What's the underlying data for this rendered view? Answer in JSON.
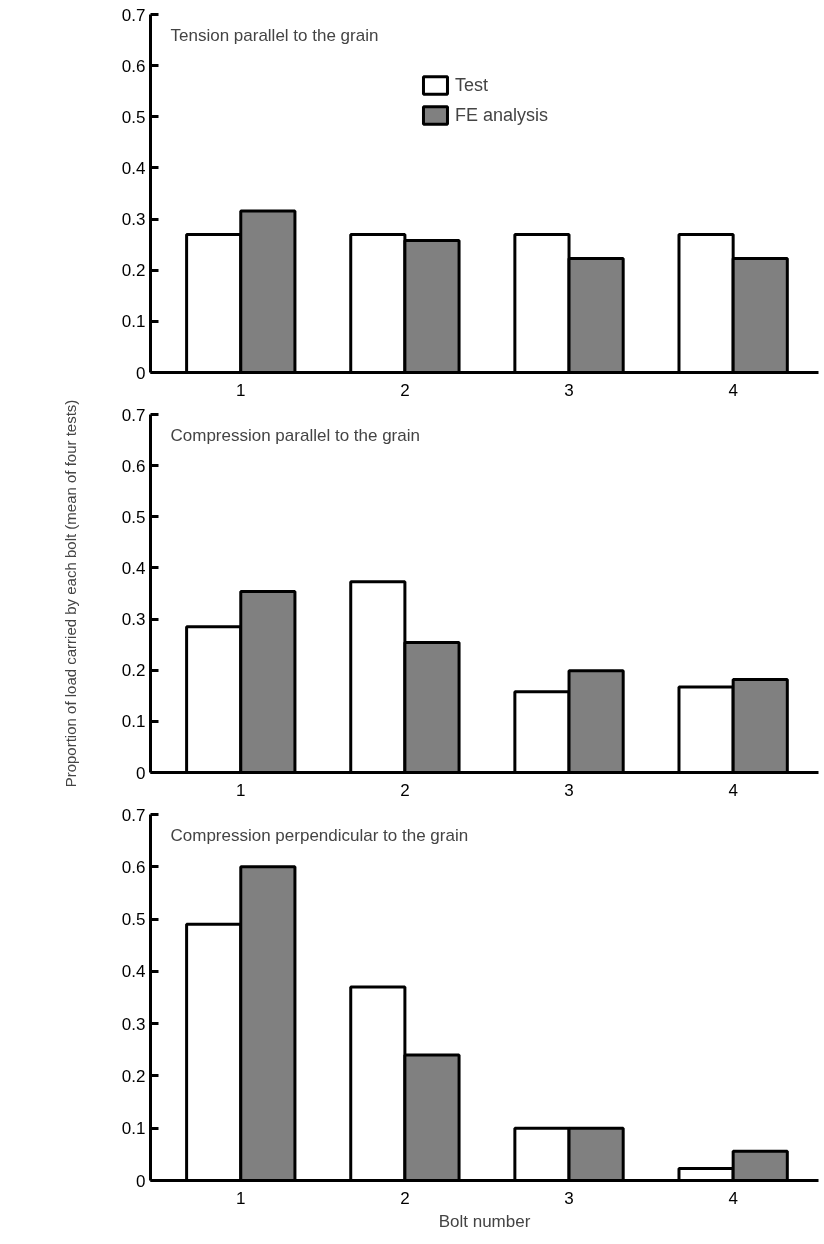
{
  "chart_data": [
    {
      "type": "bar",
      "title": "Tension parallel to the grain",
      "categories": [
        "1",
        "2",
        "3",
        "4"
      ],
      "series": [
        {
          "name": "Test",
          "color": "#ffffff",
          "values": [
            0.27,
            0.27,
            0.27,
            0.27
          ]
        },
        {
          "name": "FE analysis",
          "color": "#808080",
          "values": [
            0.316,
            0.258,
            0.223,
            0.223
          ]
        }
      ],
      "ylim": [
        0,
        0.7
      ],
      "yticks": [
        0,
        0.1,
        0.2,
        0.3,
        0.4,
        0.5,
        0.6,
        0.7
      ],
      "grid": false,
      "legend": "top"
    },
    {
      "type": "bar",
      "title": "Compression parallel to the grain",
      "ylabel": "Proportion of load carried by each bolt (mean of four tests)",
      "categories": [
        "1",
        "2",
        "3",
        "4"
      ],
      "series": [
        {
          "color": "#ffffff",
          "values": [
            0.285,
            0.373,
            0.158,
            0.167
          ]
        },
        {
          "color": "#808080",
          "values": [
            0.354,
            0.254,
            0.199,
            0.182
          ]
        }
      ],
      "ylim": [
        0,
        0.7
      ],
      "yticks": [
        0,
        0.1,
        0.2,
        0.3,
        0.4,
        0.5,
        0.6,
        0.7
      ],
      "grid": false
    },
    {
      "type": "bar",
      "title": "Compression perpendicular to the grain",
      "xlabel": "Bolt number",
      "categories": [
        "1",
        "2",
        "3",
        "4"
      ],
      "series": [
        {
          "color": "#ffffff",
          "values": [
            0.49,
            0.37,
            0.1,
            0.023
          ]
        },
        {
          "color": "#808080",
          "values": [
            0.6,
            0.24,
            0.1,
            0.056
          ]
        }
      ],
      "ylim": [
        0,
        0.7
      ],
      "yticks": [
        0,
        0.1,
        0.2,
        0.3,
        0.4,
        0.5,
        0.6,
        0.7
      ],
      "grid": false
    }
  ]
}
